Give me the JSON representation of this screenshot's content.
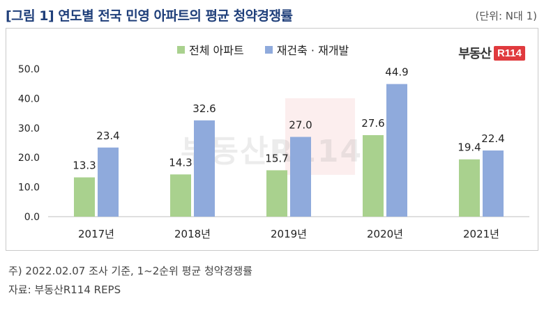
{
  "header": {
    "title": "[그림 1] 연도별 전국 민영 아파트의 평균 청약경쟁률",
    "unit": "(단위: N대 1)"
  },
  "logo": {
    "text": "부동산",
    "badge": "R114"
  },
  "watermark": {
    "text": "부동산R114"
  },
  "colors": {
    "series1": "#a9d18e",
    "series2": "#8faadc",
    "title": "#1f3f7a"
  },
  "chart_data": {
    "type": "bar",
    "categories": [
      "2017년",
      "2018년",
      "2019년",
      "2020년",
      "2021년"
    ],
    "series": [
      {
        "name": "전체 아파트",
        "values": [
          13.3,
          14.3,
          15.7,
          27.6,
          19.4
        ]
      },
      {
        "name": "재건축 · 재개발",
        "values": [
          23.4,
          32.6,
          27.0,
          44.9,
          22.4
        ]
      }
    ],
    "y_ticks": [
      "0.0",
      "10.0",
      "20.0",
      "30.0",
      "40.0",
      "50.0"
    ],
    "ylim": [
      0,
      50
    ],
    "grid": false,
    "legend_position": "top-center"
  },
  "notes": [
    "주) 2022.02.07 조사 기준,  1~2순위 평균 청약경쟁률",
    "자료: 부동산R114 REPS"
  ]
}
